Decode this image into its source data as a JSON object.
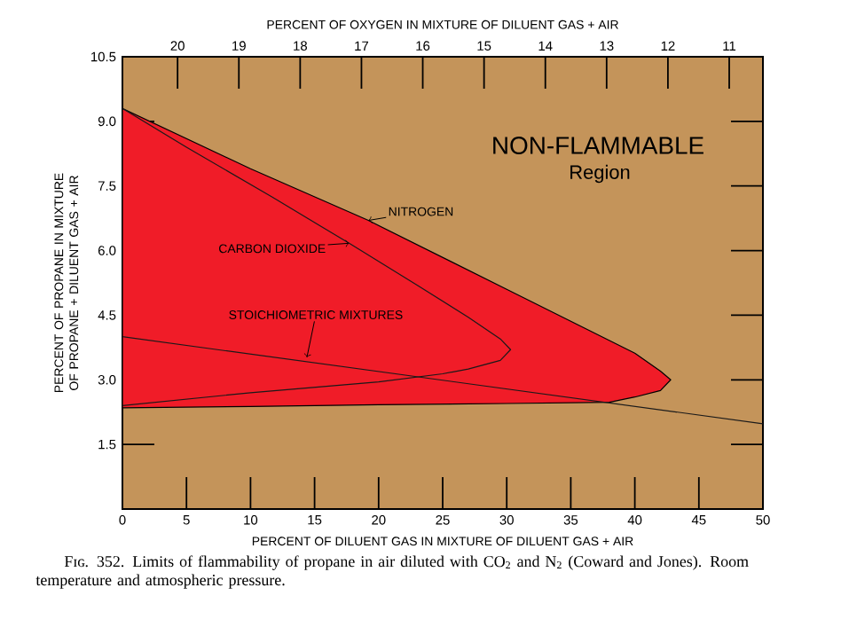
{
  "chart_data": {
    "type": "line",
    "title": null,
    "xlabel": "PERCENT OF DILUENT GAS IN MIXTURE OF DILUENT GAS + AIR",
    "ylabel": "PERCENT OF PROPANE IN MIXTURE OF PROPANE + DILUENT GAS + AIR",
    "x2label": "PERCENT OF OXYGEN IN MIXTURE OF DILUENT GAS + AIR",
    "xlim": [
      0,
      50
    ],
    "xticks": [
      0,
      5,
      10,
      15,
      20,
      25,
      30,
      35,
      40,
      45,
      50
    ],
    "ylim": [
      0,
      10.5
    ],
    "yticks": [
      {
        "value": 1.5,
        "label": "1.5"
      },
      {
        "value": 3,
        "label": "3.0"
      },
      {
        "value": 4.5,
        "label": "4.5"
      },
      {
        "value": 6,
        "label": "6.0"
      },
      {
        "value": 7.5,
        "label": "7.5"
      },
      {
        "value": 9,
        "label": "9.0"
      },
      {
        "value": 10.5,
        "label": "10.5"
      }
    ],
    "x2lim": [
      20.9,
      10.45
    ],
    "x2ticks": [
      20,
      19,
      18,
      17,
      16,
      15,
      14,
      13,
      12,
      11
    ],
    "series": [
      {
        "type": "area",
        "color": "#f01c28",
        "x": [
          0,
          10,
          19.2,
          30,
          40,
          42,
          42.8,
          42,
          40,
          38,
          30,
          20,
          10,
          0
        ],
        "values": [
          9.3,
          7.9,
          6.7,
          5.1,
          3.62,
          3.2,
          3.0,
          2.75,
          2.6,
          2.48,
          2.45,
          2.42,
          2.38,
          2.35
        ]
      },
      {
        "color": "#1a1a1a",
        "x": [
          0,
          5,
          11.7,
          17.7,
          23,
          27,
          29.5,
          30.3,
          29.5,
          27,
          25,
          20,
          10,
          0
        ],
        "values": [
          9.3,
          8.4,
          7.24,
          6.17,
          5.2,
          4.45,
          3.95,
          3.7,
          3.45,
          3.25,
          3.14,
          2.95,
          2.7,
          2.4
        ]
      },
      {
        "color": "#1a1a1a",
        "x": [
          0,
          50
        ],
        "values": [
          4.0,
          1.98
        ]
      }
    ],
    "annotations": [
      {
        "text": "NITROGEN",
        "x": 19.2,
        "y": 6.7
      },
      {
        "text": "CARBON DIOXIDE",
        "x": 17.7,
        "y": 6.17
      },
      {
        "text": "STOICHIOMETRIC MIXTURES",
        "x": 14.4,
        "y": 3.52
      },
      "NON-FLAMMABLE",
      "Region",
      "Fɪɢ. 352. Limits of flammability of propane in air diluted with CO$_{2}$ and N$_{2}$ (Coward and Jones). Room temperature and atmospheric pressure."
    ],
    "grid": false,
    "marker": "none",
    "line_style": "solid"
  }
}
